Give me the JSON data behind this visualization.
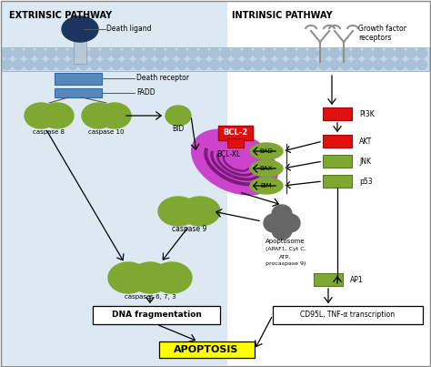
{
  "background_color": "#ffffff",
  "extrinsic_label": "EXTRINSIC PATHWAY",
  "intrinsic_label": "INTRINSIC PATHWAY",
  "extrinsic_bg": "#dce9f2",
  "membrane_color": "#c5d8e8",
  "membrane_dot_color": "#a8c0d8",
  "green_color": "#7fa832",
  "red_color": "#e01010",
  "dark_blue": "#1c3560",
  "gray_stem": "#b0bcd0",
  "purple_mito": "#cc44cc",
  "dark_purple": "#7a1a7a",
  "gray_apop": "#666666",
  "yellow_apoptosis": "#ffff00",
  "apoptosis_label": "APOPTOSIS",
  "blue_receptor": "#5588bb",
  "white": "#ffffff",
  "black": "#000000"
}
